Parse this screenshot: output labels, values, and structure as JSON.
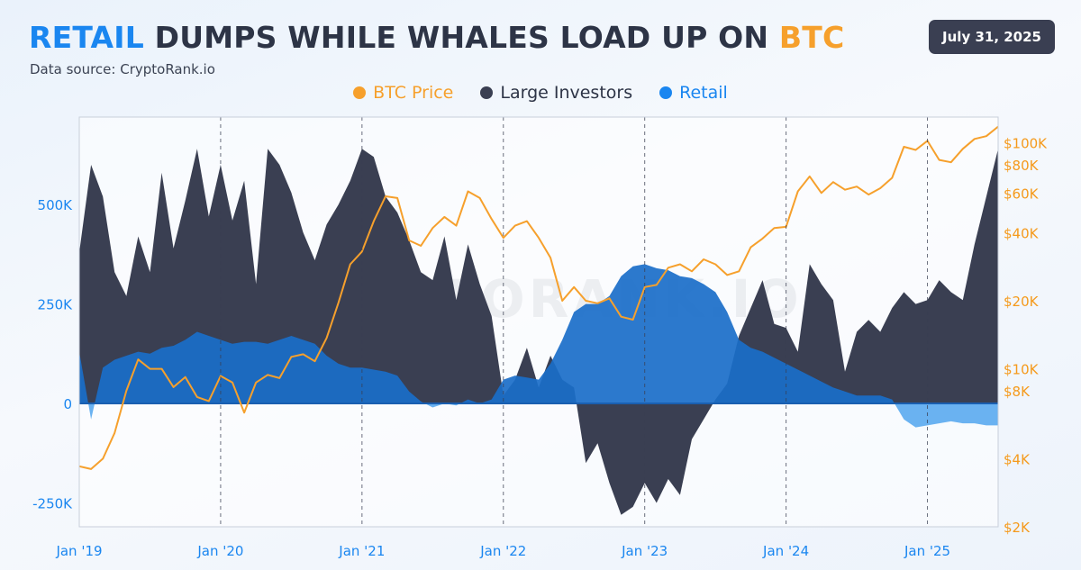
{
  "header": {
    "title_word_1": "RETAIL",
    "title_middle": " DUMPS WHILE WHALES LOAD UP ON ",
    "title_word_2": "BTC",
    "source": "Data source: CryptoRank.io",
    "date": "July 31, 2025"
  },
  "watermark": "CRYPTORANK.IO",
  "colors": {
    "btc": "#f6a02c",
    "large": "#3a3f52",
    "retail_above": "#1a6ec9",
    "retail_below": "#5aaaf0",
    "left_axis_text": "#1a86f0",
    "right_axis_text": "#f59a1c"
  },
  "chart_data": {
    "type": "area",
    "x_axis": {
      "ticks": [
        "Jan '19",
        "Jan '20",
        "Jan '21",
        "Jan '22",
        "Jan '23",
        "Jan '24",
        "Jan '25"
      ],
      "range": [
        "2019-01",
        "2025-07"
      ]
    },
    "y_left": {
      "range": [
        -310000,
        720000
      ],
      "ticks": [
        {
          "value": 500000,
          "label": "500K"
        },
        {
          "value": 250000,
          "label": "250K"
        },
        {
          "value": 0,
          "label": "0"
        },
        {
          "value": -250000,
          "label": "-250K"
        }
      ]
    },
    "y_right": {
      "scale": "log",
      "range": [
        2000,
        130000
      ],
      "ticks": [
        {
          "value": 100000,
          "label": "$100K"
        },
        {
          "value": 80000,
          "label": "$80K"
        },
        {
          "value": 60000,
          "label": "$60K"
        },
        {
          "value": 40000,
          "label": "$40K"
        },
        {
          "value": 20000,
          "label": "$20K"
        },
        {
          "value": 10000,
          "label": "$10K"
        },
        {
          "value": 8000,
          "label": "$8K"
        },
        {
          "value": 4000,
          "label": "$4K"
        },
        {
          "value": 2000,
          "label": "$2K"
        }
      ]
    },
    "legend": [
      "BTC Price",
      "Large Investors",
      "Retail"
    ],
    "series": [
      {
        "name": "Large Investors",
        "axis": "left",
        "points": [
          [
            "2019-01",
            380000
          ],
          [
            "2019-02",
            600000
          ],
          [
            "2019-03",
            520000
          ],
          [
            "2019-04",
            330000
          ],
          [
            "2019-05",
            270000
          ],
          [
            "2019-06",
            420000
          ],
          [
            "2019-07",
            330000
          ],
          [
            "2019-08",
            580000
          ],
          [
            "2019-09",
            390000
          ],
          [
            "2019-10",
            510000
          ],
          [
            "2019-11",
            640000
          ],
          [
            "2019-12",
            470000
          ],
          [
            "2020-01",
            600000
          ],
          [
            "2020-02",
            460000
          ],
          [
            "2020-03",
            560000
          ],
          [
            "2020-04",
            300000
          ],
          [
            "2020-05",
            640000
          ],
          [
            "2020-06",
            600000
          ],
          [
            "2020-07",
            530000
          ],
          [
            "2020-08",
            430000
          ],
          [
            "2020-09",
            360000
          ],
          [
            "2020-10",
            450000
          ],
          [
            "2020-11",
            500000
          ],
          [
            "2020-12",
            560000
          ],
          [
            "2021-01",
            640000
          ],
          [
            "2021-02",
            620000
          ],
          [
            "2021-03",
            520000
          ],
          [
            "2021-04",
            480000
          ],
          [
            "2021-05",
            410000
          ],
          [
            "2021-06",
            330000
          ],
          [
            "2021-07",
            310000
          ],
          [
            "2021-08",
            420000
          ],
          [
            "2021-09",
            260000
          ],
          [
            "2021-10",
            400000
          ],
          [
            "2021-11",
            300000
          ],
          [
            "2021-12",
            220000
          ],
          [
            "2022-01",
            20000
          ],
          [
            "2022-02",
            60000
          ],
          [
            "2022-03",
            140000
          ],
          [
            "2022-04",
            40000
          ],
          [
            "2022-05",
            120000
          ],
          [
            "2022-06",
            60000
          ],
          [
            "2022-07",
            40000
          ],
          [
            "2022-08",
            -150000
          ],
          [
            "2022-09",
            -100000
          ],
          [
            "2022-10",
            -200000
          ],
          [
            "2022-11",
            -280000
          ],
          [
            "2022-12",
            -260000
          ],
          [
            "2023-01",
            -200000
          ],
          [
            "2023-02",
            -250000
          ],
          [
            "2023-03",
            -190000
          ],
          [
            "2023-04",
            -230000
          ],
          [
            "2023-05",
            -90000
          ],
          [
            "2023-06",
            -40000
          ],
          [
            "2023-07",
            10000
          ],
          [
            "2023-08",
            50000
          ],
          [
            "2023-09",
            170000
          ],
          [
            "2023-10",
            240000
          ],
          [
            "2023-11",
            310000
          ],
          [
            "2023-12",
            200000
          ],
          [
            "2024-01",
            190000
          ],
          [
            "2024-02",
            130000
          ],
          [
            "2024-03",
            350000
          ],
          [
            "2024-04",
            300000
          ],
          [
            "2024-05",
            260000
          ],
          [
            "2024-06",
            80000
          ],
          [
            "2024-07",
            180000
          ],
          [
            "2024-08",
            210000
          ],
          [
            "2024-09",
            180000
          ],
          [
            "2024-10",
            240000
          ],
          [
            "2024-11",
            280000
          ],
          [
            "2024-12",
            250000
          ],
          [
            "2025-01",
            260000
          ],
          [
            "2025-02",
            310000
          ],
          [
            "2025-03",
            280000
          ],
          [
            "2025-04",
            260000
          ],
          [
            "2025-05",
            400000
          ],
          [
            "2025-06",
            520000
          ],
          [
            "2025-07",
            640000
          ]
        ]
      },
      {
        "name": "Retail",
        "axis": "left",
        "points": [
          [
            "2019-01",
            130000
          ],
          [
            "2019-02",
            -40000
          ],
          [
            "2019-03",
            90000
          ],
          [
            "2019-04",
            110000
          ],
          [
            "2019-05",
            120000
          ],
          [
            "2019-06",
            130000
          ],
          [
            "2019-07",
            125000
          ],
          [
            "2019-08",
            140000
          ],
          [
            "2019-09",
            145000
          ],
          [
            "2019-10",
            160000
          ],
          [
            "2019-11",
            180000
          ],
          [
            "2019-12",
            170000
          ],
          [
            "2020-01",
            160000
          ],
          [
            "2020-02",
            150000
          ],
          [
            "2020-03",
            155000
          ],
          [
            "2020-04",
            155000
          ],
          [
            "2020-05",
            150000
          ],
          [
            "2020-06",
            160000
          ],
          [
            "2020-07",
            170000
          ],
          [
            "2020-08",
            160000
          ],
          [
            "2020-09",
            150000
          ],
          [
            "2020-10",
            120000
          ],
          [
            "2020-11",
            100000
          ],
          [
            "2020-12",
            90000
          ],
          [
            "2021-01",
            90000
          ],
          [
            "2021-02",
            85000
          ],
          [
            "2021-03",
            80000
          ],
          [
            "2021-04",
            70000
          ],
          [
            "2021-05",
            30000
          ],
          [
            "2021-06",
            5000
          ],
          [
            "2021-07",
            -10000
          ],
          [
            "2021-08",
            0
          ],
          [
            "2021-09",
            -5000
          ],
          [
            "2021-10",
            10000
          ],
          [
            "2021-11",
            0
          ],
          [
            "2021-12",
            10000
          ],
          [
            "2022-01",
            60000
          ],
          [
            "2022-02",
            70000
          ],
          [
            "2022-03",
            65000
          ],
          [
            "2022-04",
            60000
          ],
          [
            "2022-05",
            100000
          ],
          [
            "2022-06",
            160000
          ],
          [
            "2022-07",
            230000
          ],
          [
            "2022-08",
            250000
          ],
          [
            "2022-09",
            250000
          ],
          [
            "2022-10",
            270000
          ],
          [
            "2022-11",
            320000
          ],
          [
            "2022-12",
            345000
          ],
          [
            "2023-01",
            350000
          ],
          [
            "2023-02",
            340000
          ],
          [
            "2023-03",
            335000
          ],
          [
            "2023-04",
            320000
          ],
          [
            "2023-05",
            315000
          ],
          [
            "2023-06",
            300000
          ],
          [
            "2023-07",
            280000
          ],
          [
            "2023-08",
            230000
          ],
          [
            "2023-09",
            160000
          ],
          [
            "2023-10",
            140000
          ],
          [
            "2023-11",
            130000
          ],
          [
            "2023-12",
            115000
          ],
          [
            "2024-01",
            100000
          ],
          [
            "2024-02",
            85000
          ],
          [
            "2024-03",
            70000
          ],
          [
            "2024-04",
            55000
          ],
          [
            "2024-05",
            40000
          ],
          [
            "2024-06",
            30000
          ],
          [
            "2024-07",
            20000
          ],
          [
            "2024-08",
            20000
          ],
          [
            "2024-09",
            20000
          ],
          [
            "2024-10",
            10000
          ],
          [
            "2024-11",
            -40000
          ],
          [
            "2024-12",
            -60000
          ],
          [
            "2025-01",
            -55000
          ],
          [
            "2025-02",
            -50000
          ],
          [
            "2025-03",
            -45000
          ],
          [
            "2025-04",
            -50000
          ],
          [
            "2025-05",
            -50000
          ],
          [
            "2025-06",
            -55000
          ],
          [
            "2025-07",
            -55000
          ]
        ]
      },
      {
        "name": "BTC Price",
        "axis": "right",
        "points": [
          [
            "2019-01",
            3700
          ],
          [
            "2019-02",
            3600
          ],
          [
            "2019-03",
            4000
          ],
          [
            "2019-04",
            5200
          ],
          [
            "2019-05",
            8000
          ],
          [
            "2019-06",
            11000
          ],
          [
            "2019-07",
            10000
          ],
          [
            "2019-08",
            10000
          ],
          [
            "2019-09",
            8300
          ],
          [
            "2019-10",
            9200
          ],
          [
            "2019-11",
            7500
          ],
          [
            "2019-12",
            7200
          ],
          [
            "2020-01",
            9300
          ],
          [
            "2020-02",
            8700
          ],
          [
            "2020-03",
            6400
          ],
          [
            "2020-04",
            8700
          ],
          [
            "2020-05",
            9400
          ],
          [
            "2020-06",
            9100
          ],
          [
            "2020-07",
            11300
          ],
          [
            "2020-08",
            11600
          ],
          [
            "2020-09",
            10800
          ],
          [
            "2020-10",
            13700
          ],
          [
            "2020-11",
            19600
          ],
          [
            "2020-12",
            29000
          ],
          [
            "2021-01",
            33000
          ],
          [
            "2021-02",
            45000
          ],
          [
            "2021-03",
            58000
          ],
          [
            "2021-04",
            57000
          ],
          [
            "2021-05",
            37000
          ],
          [
            "2021-06",
            35000
          ],
          [
            "2021-07",
            42000
          ],
          [
            "2021-08",
            47000
          ],
          [
            "2021-09",
            43000
          ],
          [
            "2021-10",
            61000
          ],
          [
            "2021-11",
            57000
          ],
          [
            "2021-12",
            46000
          ],
          [
            "2022-01",
            38000
          ],
          [
            "2022-02",
            43000
          ],
          [
            "2022-03",
            45000
          ],
          [
            "2022-04",
            38000
          ],
          [
            "2022-05",
            31000
          ],
          [
            "2022-06",
            20000
          ],
          [
            "2022-07",
            23000
          ],
          [
            "2022-08",
            20000
          ],
          [
            "2022-09",
            19500
          ],
          [
            "2022-10",
            20500
          ],
          [
            "2022-11",
            17000
          ],
          [
            "2022-12",
            16500
          ],
          [
            "2023-01",
            23000
          ],
          [
            "2023-02",
            23500
          ],
          [
            "2023-03",
            28000
          ],
          [
            "2023-04",
            29000
          ],
          [
            "2023-05",
            27000
          ],
          [
            "2023-06",
            30500
          ],
          [
            "2023-07",
            29000
          ],
          [
            "2023-08",
            26000
          ],
          [
            "2023-09",
            27000
          ],
          [
            "2023-10",
            34500
          ],
          [
            "2023-11",
            37700
          ],
          [
            "2023-12",
            42000
          ],
          [
            "2024-01",
            42500
          ],
          [
            "2024-02",
            61000
          ],
          [
            "2024-03",
            71000
          ],
          [
            "2024-04",
            60000
          ],
          [
            "2024-05",
            67000
          ],
          [
            "2024-06",
            62000
          ],
          [
            "2024-07",
            64000
          ],
          [
            "2024-08",
            59000
          ],
          [
            "2024-09",
            63000
          ],
          [
            "2024-10",
            70000
          ],
          [
            "2024-11",
            96000
          ],
          [
            "2024-12",
            93000
          ],
          [
            "2025-01",
            102000
          ],
          [
            "2025-02",
            84000
          ],
          [
            "2025-03",
            82000
          ],
          [
            "2025-04",
            94000
          ],
          [
            "2025-05",
            104000
          ],
          [
            "2025-06",
            107000
          ],
          [
            "2025-07",
            118000
          ]
        ]
      }
    ]
  }
}
